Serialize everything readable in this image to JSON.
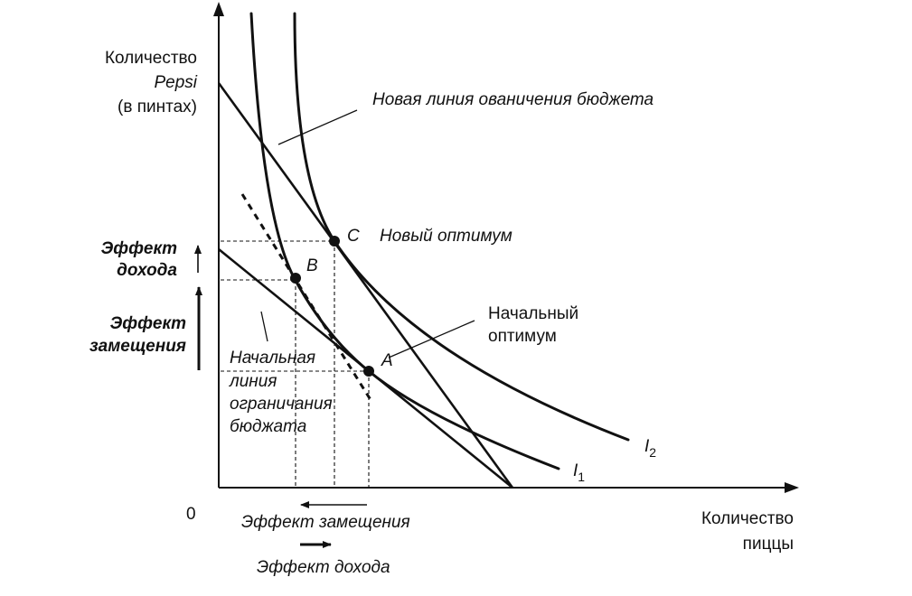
{
  "axes": {
    "y_label_line1": "Количество",
    "y_label_line2": "Pepsi",
    "y_label_line3": "(в пинтах)",
    "x_label_line1": "Количество",
    "x_label_line2": "пиццы",
    "origin": "0"
  },
  "annotations": {
    "new_budget": "Новая линия ованичения бюджета",
    "new_optimum": "Новый оптимум",
    "initial_optimum_line1": "Начальный",
    "initial_optimum_line2": "оптимум",
    "initial_budget_line1": "Начальная",
    "initial_budget_line2": "линия",
    "initial_budget_line3": "ограничания",
    "initial_budget_line4": "бюджата"
  },
  "points": {
    "a": "A",
    "b": "B",
    "c": "C"
  },
  "curves": {
    "i1_letter": "I",
    "i1_sub": "1",
    "i2_letter": "I",
    "i2_sub": "2"
  },
  "effects": {
    "income_y_line1": "Эффект",
    "income_y_line2": "дохода",
    "substitution_y_line1": "Эффект",
    "substitution_y_line2": "замещения",
    "substitution_x": "Эффект замещения",
    "income_x": "Эффект дохода"
  }
}
